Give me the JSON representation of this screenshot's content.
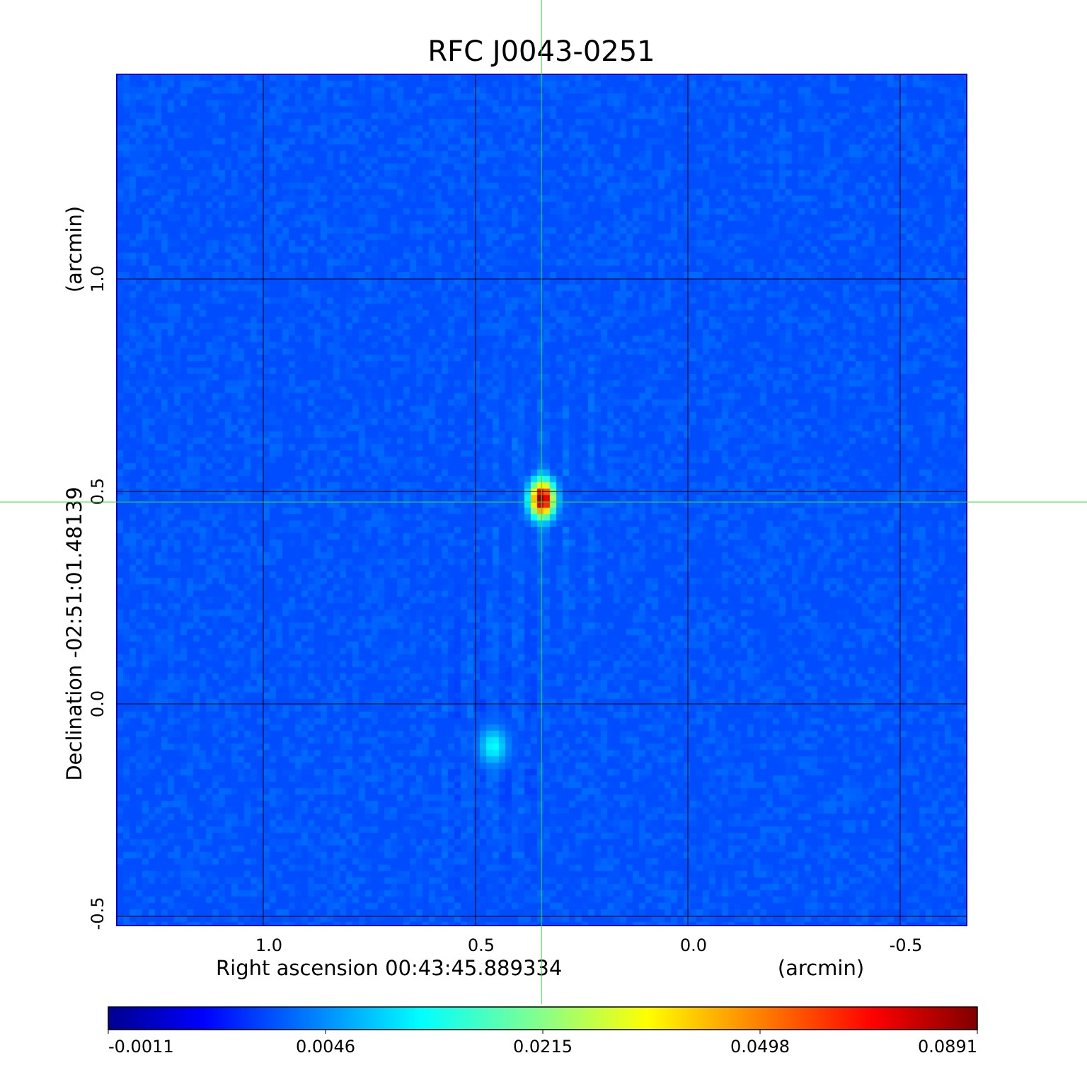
{
  "chart_data": {
    "type": "heatmap",
    "title": "RFC J0043-0251",
    "title_color": "#0000e0",
    "xlabel": "Right ascension  00:43:45.889334",
    "xlabel_units": "(arcmin)",
    "ylabel": "Declination  -02:51:01.48139",
    "ylabel_units": "(arcmin)",
    "xlim": [
      1.347,
      -0.655
    ],
    "ylim": [
      -0.52,
      1.48
    ],
    "x_ticks": [
      1.0,
      0.5,
      0.0,
      -0.5
    ],
    "x_tick_labels": [
      "1.0",
      "0.5",
      "0.0",
      "-0.5"
    ],
    "y_ticks": [
      1.0,
      0.5,
      0.0,
      -0.5
    ],
    "y_tick_labels": [
      "1.0",
      "0.5",
      "0.0",
      "-0.5"
    ],
    "grid": true,
    "crosshair": {
      "x": 0.343,
      "y": 0.475,
      "color": "#33dd33"
    },
    "colormap": "jet",
    "colorbar": {
      "placement": "bottom",
      "tick_labels": [
        "-0.0011",
        "0.0046",
        "0.0215",
        "0.0498",
        "0.0891"
      ],
      "range": [
        -0.0011,
        0.0891
      ]
    },
    "sources": [
      {
        "x": 0.343,
        "y": 0.482,
        "peak": 0.0891
      },
      {
        "x": 0.458,
        "y": -0.1,
        "peak": 0.012
      }
    ]
  }
}
